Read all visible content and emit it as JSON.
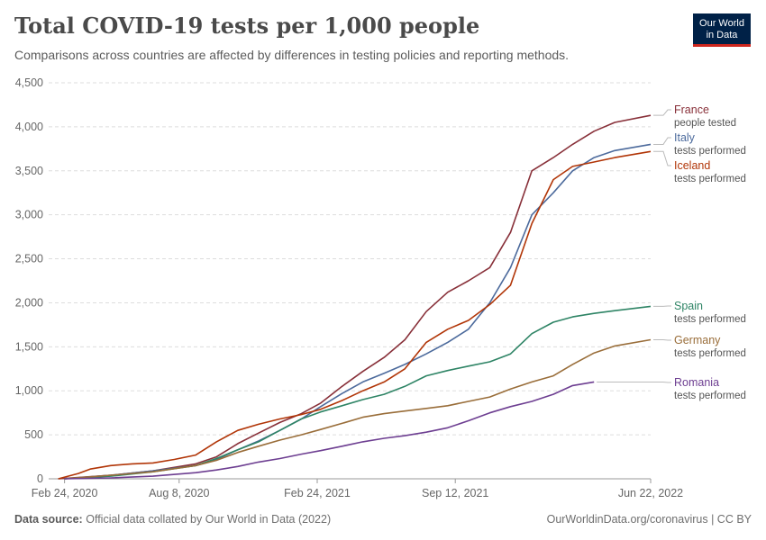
{
  "header": {
    "title": "Total COVID-19 tests per 1,000 people",
    "subtitle": "Comparisons across countries are affected by differences in testing policies and reporting methods.",
    "logo_line1": "Our World",
    "logo_line2": "in Data"
  },
  "footer": {
    "source_label": "Data source:",
    "source_text": "Official data collated by Our World in Data (2022)",
    "credit": "OurWorldinData.org/coronavirus | CC BY"
  },
  "chart_data": {
    "type": "line",
    "title": "Total COVID-19 tests per 1,000 people",
    "ylim": [
      0,
      4500
    ],
    "y_ticks": [
      0,
      500,
      1000,
      1500,
      2000,
      2500,
      3000,
      3500,
      4000,
      4500
    ],
    "y_tick_labels": [
      "0",
      "500",
      "1,000",
      "1,500",
      "2,000",
      "2,500",
      "3,000",
      "3,500",
      "4,000",
      "4,500"
    ],
    "x_range": [
      "2020-02-01",
      "2022-06-22"
    ],
    "x_ticks": [
      "2020-02-24",
      "2020-08-08",
      "2021-02-24",
      "2021-09-12",
      "2022-06-22"
    ],
    "x_tick_labels": [
      "Feb 24, 2020",
      "Aug 8, 2020",
      "Feb 24, 2021",
      "Sep 12, 2021",
      "Jun 22, 2022"
    ],
    "grid": "horizontal-dashed",
    "legend": "right-end-labels",
    "series": [
      {
        "name": "France",
        "sublabel": "people tested",
        "color": "#883039",
        "points": [
          [
            "2020-02-15",
            0
          ],
          [
            "2020-05-01",
            40
          ],
          [
            "2020-07-01",
            90
          ],
          [
            "2020-09-01",
            170
          ],
          [
            "2020-10-01",
            250
          ],
          [
            "2020-11-01",
            400
          ],
          [
            "2020-12-01",
            520
          ],
          [
            "2021-01-01",
            640
          ],
          [
            "2021-02-01",
            740
          ],
          [
            "2021-03-01",
            860
          ],
          [
            "2021-04-01",
            1050
          ],
          [
            "2021-05-01",
            1220
          ],
          [
            "2021-06-01",
            1380
          ],
          [
            "2021-07-01",
            1580
          ],
          [
            "2021-08-01",
            1900
          ],
          [
            "2021-09-01",
            2120
          ],
          [
            "2021-10-01",
            2250
          ],
          [
            "2021-11-01",
            2400
          ],
          [
            "2021-12-01",
            2800
          ],
          [
            "2022-01-01",
            3500
          ],
          [
            "2022-02-01",
            3650
          ],
          [
            "2022-03-01",
            3800
          ],
          [
            "2022-04-01",
            3950
          ],
          [
            "2022-05-01",
            4050
          ],
          [
            "2022-06-22",
            4130
          ]
        ]
      },
      {
        "name": "Italy",
        "sublabel": "tests performed",
        "color": "#4c6a9c",
        "points": [
          [
            "2020-02-24",
            0
          ],
          [
            "2020-05-01",
            40
          ],
          [
            "2020-07-01",
            90
          ],
          [
            "2020-09-01",
            150
          ],
          [
            "2020-10-01",
            220
          ],
          [
            "2020-11-01",
            330
          ],
          [
            "2020-12-01",
            430
          ],
          [
            "2021-01-01",
            550
          ],
          [
            "2021-02-01",
            680
          ],
          [
            "2021-03-01",
            820
          ],
          [
            "2021-04-01",
            970
          ],
          [
            "2021-05-01",
            1100
          ],
          [
            "2021-06-01",
            1200
          ],
          [
            "2021-07-01",
            1300
          ],
          [
            "2021-08-01",
            1420
          ],
          [
            "2021-09-01",
            1550
          ],
          [
            "2021-10-01",
            1700
          ],
          [
            "2021-11-01",
            2000
          ],
          [
            "2021-12-01",
            2400
          ],
          [
            "2022-01-01",
            3000
          ],
          [
            "2022-02-01",
            3250
          ],
          [
            "2022-03-01",
            3500
          ],
          [
            "2022-04-01",
            3650
          ],
          [
            "2022-05-01",
            3730
          ],
          [
            "2022-06-22",
            3800
          ]
        ]
      },
      {
        "name": "Iceland",
        "sublabel": "tests performed",
        "color": "#b13507",
        "points": [
          [
            "2020-02-15",
            0
          ],
          [
            "2020-03-15",
            60
          ],
          [
            "2020-04-01",
            110
          ],
          [
            "2020-05-01",
            150
          ],
          [
            "2020-06-01",
            170
          ],
          [
            "2020-07-01",
            180
          ],
          [
            "2020-08-01",
            220
          ],
          [
            "2020-09-01",
            270
          ],
          [
            "2020-10-01",
            420
          ],
          [
            "2020-11-01",
            550
          ],
          [
            "2020-12-01",
            620
          ],
          [
            "2021-01-01",
            680
          ],
          [
            "2021-02-01",
            730
          ],
          [
            "2021-03-01",
            790
          ],
          [
            "2021-04-01",
            890
          ],
          [
            "2021-05-01",
            1000
          ],
          [
            "2021-06-01",
            1100
          ],
          [
            "2021-07-01",
            1250
          ],
          [
            "2021-08-01",
            1550
          ],
          [
            "2021-09-01",
            1700
          ],
          [
            "2021-10-01",
            1800
          ],
          [
            "2021-11-01",
            1980
          ],
          [
            "2021-12-01",
            2200
          ],
          [
            "2022-01-01",
            2900
          ],
          [
            "2022-02-01",
            3400
          ],
          [
            "2022-03-01",
            3550
          ],
          [
            "2022-04-01",
            3600
          ],
          [
            "2022-05-01",
            3650
          ],
          [
            "2022-06-22",
            3720
          ]
        ]
      },
      {
        "name": "Spain",
        "sublabel": "tests performed",
        "color": "#2e8465",
        "points": [
          [
            "2020-02-24",
            0
          ],
          [
            "2020-05-01",
            30
          ],
          [
            "2020-07-01",
            80
          ],
          [
            "2020-09-01",
            150
          ],
          [
            "2020-10-01",
            230
          ],
          [
            "2020-11-01",
            330
          ],
          [
            "2020-12-01",
            420
          ],
          [
            "2021-01-01",
            550
          ],
          [
            "2021-02-01",
            680
          ],
          [
            "2021-03-01",
            760
          ],
          [
            "2021-04-01",
            830
          ],
          [
            "2021-05-01",
            900
          ],
          [
            "2021-06-01",
            960
          ],
          [
            "2021-07-01",
            1050
          ],
          [
            "2021-08-01",
            1170
          ],
          [
            "2021-09-01",
            1230
          ],
          [
            "2021-10-01",
            1280
          ],
          [
            "2021-11-01",
            1330
          ],
          [
            "2021-12-01",
            1420
          ],
          [
            "2022-01-01",
            1650
          ],
          [
            "2022-02-01",
            1780
          ],
          [
            "2022-03-01",
            1840
          ],
          [
            "2022-04-01",
            1880
          ],
          [
            "2022-05-01",
            1910
          ],
          [
            "2022-06-22",
            1960
          ]
        ]
      },
      {
        "name": "Germany",
        "sublabel": "tests performed",
        "color": "#996d39",
        "points": [
          [
            "2020-02-24",
            0
          ],
          [
            "2020-05-01",
            40
          ],
          [
            "2020-07-01",
            80
          ],
          [
            "2020-09-01",
            150
          ],
          [
            "2020-10-01",
            210
          ],
          [
            "2020-11-01",
            300
          ],
          [
            "2020-12-01",
            370
          ],
          [
            "2021-01-01",
            440
          ],
          [
            "2021-02-01",
            500
          ],
          [
            "2021-03-01",
            560
          ],
          [
            "2021-04-01",
            630
          ],
          [
            "2021-05-01",
            700
          ],
          [
            "2021-06-01",
            740
          ],
          [
            "2021-07-01",
            770
          ],
          [
            "2021-08-01",
            800
          ],
          [
            "2021-09-01",
            830
          ],
          [
            "2021-10-01",
            880
          ],
          [
            "2021-11-01",
            930
          ],
          [
            "2021-12-01",
            1020
          ],
          [
            "2022-01-01",
            1100
          ],
          [
            "2022-02-01",
            1170
          ],
          [
            "2022-03-01",
            1300
          ],
          [
            "2022-04-01",
            1430
          ],
          [
            "2022-05-01",
            1510
          ],
          [
            "2022-06-22",
            1580
          ]
        ]
      },
      {
        "name": "Romania",
        "sublabel": "tests performed",
        "color": "#6d3e91",
        "points": [
          [
            "2020-02-24",
            0
          ],
          [
            "2020-05-01",
            10
          ],
          [
            "2020-07-01",
            30
          ],
          [
            "2020-09-01",
            70
          ],
          [
            "2020-10-01",
            100
          ],
          [
            "2020-11-01",
            140
          ],
          [
            "2020-12-01",
            190
          ],
          [
            "2021-01-01",
            230
          ],
          [
            "2021-02-01",
            280
          ],
          [
            "2021-03-01",
            320
          ],
          [
            "2021-04-01",
            370
          ],
          [
            "2021-05-01",
            420
          ],
          [
            "2021-06-01",
            460
          ],
          [
            "2021-07-01",
            490
          ],
          [
            "2021-08-01",
            530
          ],
          [
            "2021-09-01",
            580
          ],
          [
            "2021-10-01",
            660
          ],
          [
            "2021-11-01",
            750
          ],
          [
            "2021-12-01",
            820
          ],
          [
            "2022-01-01",
            880
          ],
          [
            "2022-02-01",
            960
          ],
          [
            "2022-03-01",
            1060
          ],
          [
            "2022-04-01",
            1100
          ]
        ]
      }
    ]
  }
}
